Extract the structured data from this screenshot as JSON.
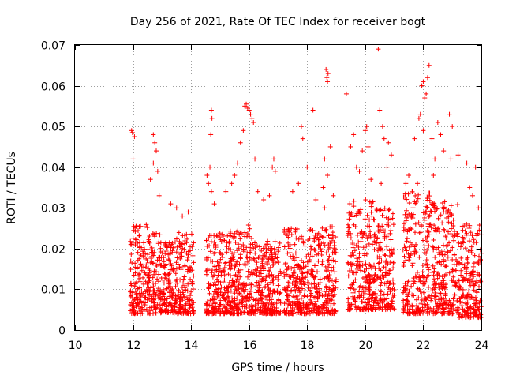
{
  "chart_data": {
    "type": "scatter",
    "title": "Day 256 of 2021, Rate Of TEC Index for receiver bogt",
    "xlabel": "GPS time / hours",
    "ylabel": "ROTI / TECUs",
    "xlim": [
      10,
      24
    ],
    "ylim": [
      0,
      0.07
    ],
    "xticks": [
      "10",
      "12",
      "14",
      "16",
      "18",
      "20",
      "22",
      "24"
    ],
    "yticks": [
      "0",
      "0.01",
      "0.02",
      "0.03",
      "0.04",
      "0.05",
      "0.06",
      "0.07"
    ],
    "grid": true,
    "marker": "+",
    "color": "#ff0000",
    "series": [
      {
        "clusters": [
          {
            "x": [
              11.9,
              12.5
            ],
            "y": [
              0.004,
              0.026
            ]
          },
          {
            "x": [
              12.5,
              13.0
            ],
            "y": [
              0.004,
              0.024
            ]
          },
          {
            "x": [
              13.0,
              13.5
            ],
            "y": [
              0.004,
              0.022
            ]
          },
          {
            "x": [
              13.5,
              14.1
            ],
            "y": [
              0.004,
              0.024
            ]
          },
          {
            "x": [
              14.5,
              15.3
            ],
            "y": [
              0.004,
              0.024
            ]
          },
          {
            "x": [
              15.3,
              16.1
            ],
            "y": [
              0.004,
              0.026
            ]
          },
          {
            "x": [
              16.1,
              17.1
            ],
            "y": [
              0.004,
              0.022
            ]
          },
          {
            "x": [
              17.2,
              18.4
            ],
            "y": [
              0.004,
              0.025
            ]
          },
          {
            "x": [
              18.4,
              19.0
            ],
            "y": [
              0.004,
              0.026
            ]
          },
          {
            "x": [
              19.4,
              20.3
            ],
            "y": [
              0.005,
              0.032
            ]
          },
          {
            "x": [
              20.3,
              21.0
            ],
            "y": [
              0.005,
              0.03
            ]
          },
          {
            "x": [
              21.3,
              22.3
            ],
            "y": [
              0.004,
              0.034
            ]
          },
          {
            "x": [
              22.3,
              23.2
            ],
            "y": [
              0.004,
              0.032
            ]
          },
          {
            "x": [
              23.2,
              24.0
            ],
            "y": [
              0.003,
              0.026
            ]
          }
        ],
        "upper_points": [
          [
            11.95,
            0.049
          ],
          [
            11.98,
            0.0485
          ],
          [
            12.0,
            0.042
          ],
          [
            12.05,
            0.0475
          ],
          [
            12.7,
            0.048
          ],
          [
            12.75,
            0.046
          ],
          [
            12.8,
            0.044
          ],
          [
            12.7,
            0.041
          ],
          [
            12.6,
            0.037
          ],
          [
            12.85,
            0.039
          ],
          [
            12.9,
            0.033
          ],
          [
            13.3,
            0.031
          ],
          [
            13.5,
            0.03
          ],
          [
            13.9,
            0.029
          ],
          [
            13.7,
            0.028
          ],
          [
            14.55,
            0.038
          ],
          [
            14.6,
            0.036
          ],
          [
            14.65,
            0.04
          ],
          [
            14.7,
            0.034
          ],
          [
            14.7,
            0.054
          ],
          [
            14.72,
            0.052
          ],
          [
            14.68,
            0.048
          ],
          [
            14.8,
            0.031
          ],
          [
            15.2,
            0.034
          ],
          [
            15.4,
            0.036
          ],
          [
            15.5,
            0.038
          ],
          [
            15.6,
            0.041
          ],
          [
            15.7,
            0.046
          ],
          [
            15.8,
            0.049
          ],
          [
            15.85,
            0.055
          ],
          [
            15.9,
            0.0555
          ],
          [
            15.95,
            0.0545
          ],
          [
            16.0,
            0.054
          ],
          [
            16.05,
            0.053
          ],
          [
            16.1,
            0.052
          ],
          [
            16.15,
            0.051
          ],
          [
            16.2,
            0.042
          ],
          [
            16.3,
            0.034
          ],
          [
            16.5,
            0.032
          ],
          [
            16.8,
            0.04
          ],
          [
            16.85,
            0.042
          ],
          [
            16.9,
            0.039
          ],
          [
            16.7,
            0.033
          ],
          [
            17.5,
            0.034
          ],
          [
            17.7,
            0.036
          ],
          [
            17.8,
            0.05
          ],
          [
            17.85,
            0.047
          ],
          [
            18.0,
            0.04
          ],
          [
            18.2,
            0.054
          ],
          [
            18.3,
            0.032
          ],
          [
            18.55,
            0.035
          ],
          [
            18.6,
            0.042
          ],
          [
            18.7,
            0.038
          ],
          [
            18.65,
            0.064
          ],
          [
            18.68,
            0.062
          ],
          [
            18.7,
            0.061
          ],
          [
            18.72,
            0.063
          ],
          [
            18.8,
            0.045
          ],
          [
            18.6,
            0.03
          ],
          [
            18.9,
            0.033
          ],
          [
            19.35,
            0.058
          ],
          [
            19.5,
            0.045
          ],
          [
            19.6,
            0.048
          ],
          [
            19.7,
            0.04
          ],
          [
            19.8,
            0.039
          ],
          [
            19.9,
            0.044
          ],
          [
            20.0,
            0.049
          ],
          [
            20.05,
            0.05
          ],
          [
            20.1,
            0.045
          ],
          [
            20.2,
            0.037
          ],
          [
            20.45,
            0.069
          ],
          [
            20.5,
            0.054
          ],
          [
            20.6,
            0.05
          ],
          [
            20.65,
            0.047
          ],
          [
            20.8,
            0.046
          ],
          [
            20.9,
            0.043
          ],
          [
            20.75,
            0.04
          ],
          [
            20.55,
            0.036
          ],
          [
            21.5,
            0.038
          ],
          [
            21.7,
            0.047
          ],
          [
            21.8,
            0.036
          ],
          [
            21.85,
            0.052
          ],
          [
            21.9,
            0.053
          ],
          [
            21.95,
            0.06
          ],
          [
            22.0,
            0.061
          ],
          [
            22.05,
            0.057
          ],
          [
            22.1,
            0.058
          ],
          [
            22.2,
            0.065
          ],
          [
            22.15,
            0.062
          ],
          [
            22.0,
            0.049
          ],
          [
            22.3,
            0.047
          ],
          [
            22.4,
            0.042
          ],
          [
            22.5,
            0.051
          ],
          [
            22.6,
            0.048
          ],
          [
            22.7,
            0.044
          ],
          [
            22.9,
            0.053
          ],
          [
            23.0,
            0.05
          ],
          [
            22.95,
            0.042
          ],
          [
            23.2,
            0.043
          ],
          [
            23.5,
            0.041
          ],
          [
            23.8,
            0.04
          ],
          [
            23.6,
            0.035
          ],
          [
            23.7,
            0.033
          ],
          [
            23.9,
            0.03
          ],
          [
            21.4,
            0.036
          ],
          [
            22.35,
            0.038
          ]
        ]
      }
    ]
  }
}
